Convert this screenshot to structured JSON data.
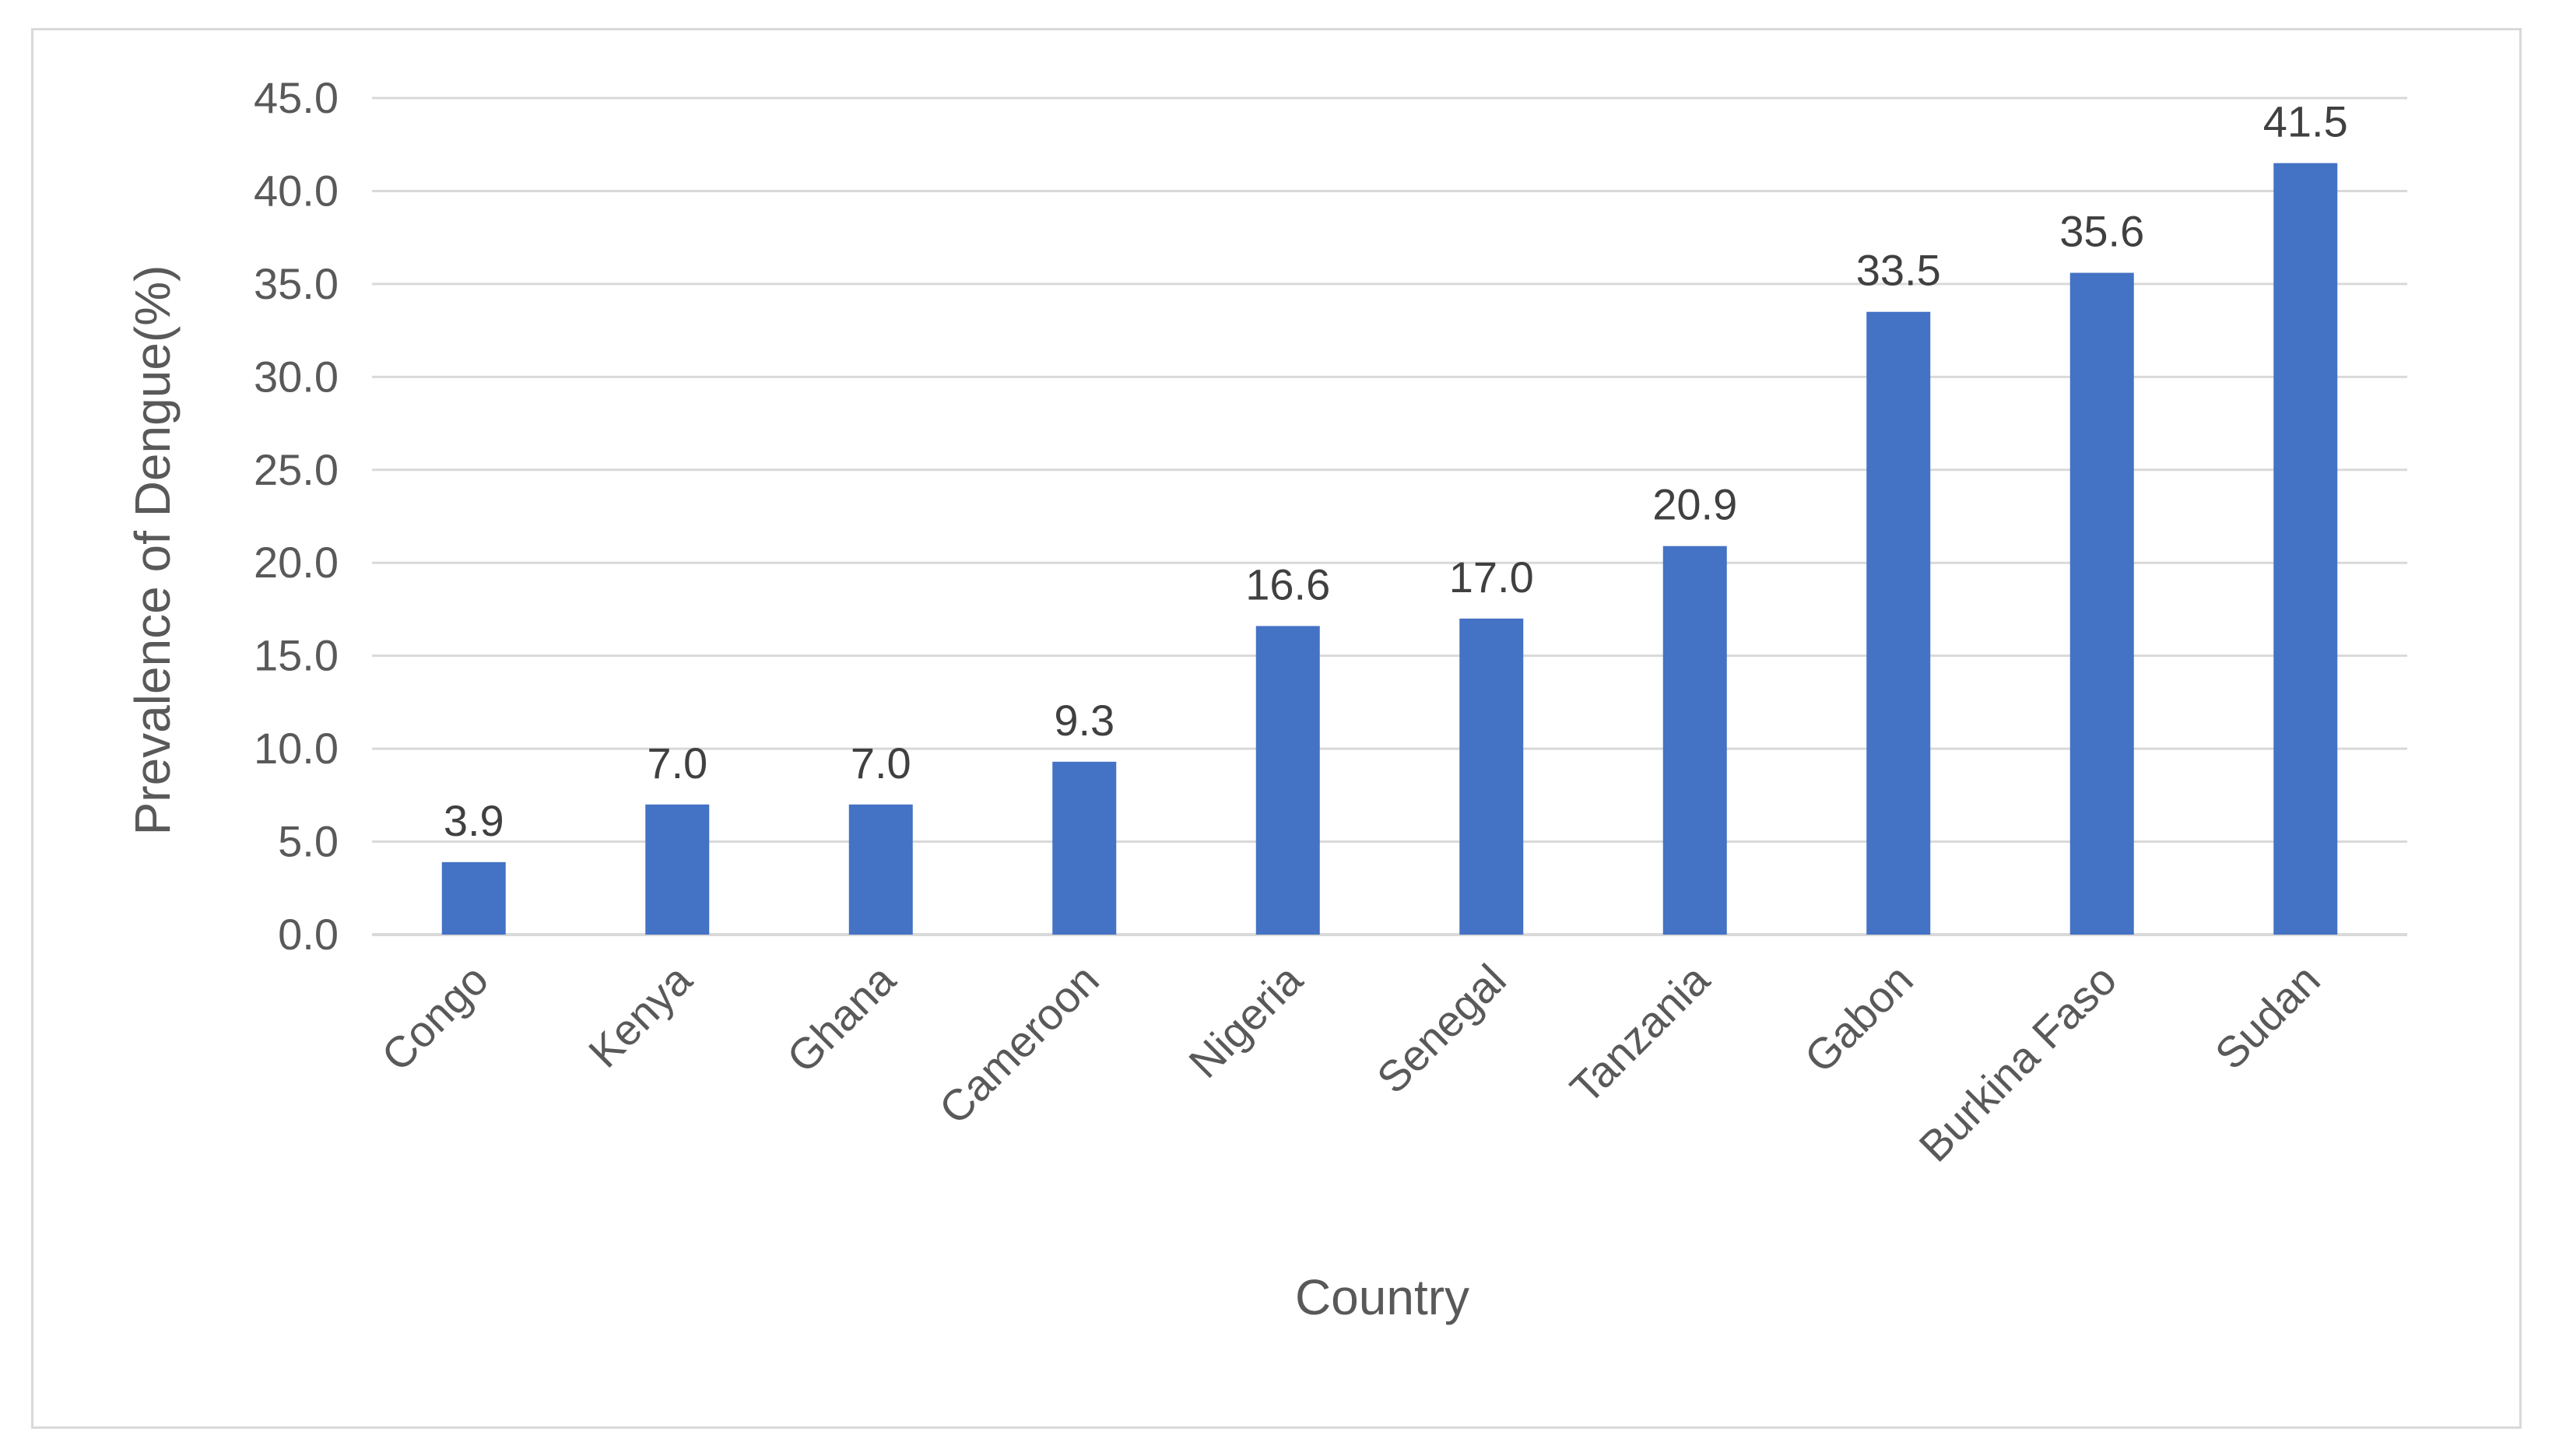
{
  "chart_data": {
    "type": "bar",
    "categories": [
      "Congo",
      "Kenya",
      "Ghana",
      "Cameroon",
      "Nigeria",
      "Senegal",
      "Tanzania",
      "Gabon",
      "Burkina Faso",
      "Sudan"
    ],
    "values": [
      3.9,
      7.0,
      7.0,
      9.3,
      16.6,
      17.0,
      20.9,
      33.5,
      35.6,
      41.5
    ],
    "data_labels": [
      "3.9",
      "7.0",
      "7.0",
      "9.3",
      "16.6",
      "17.0",
      "20.9",
      "33.5",
      "35.6",
      "41.5"
    ],
    "y_ticks": [
      "0.0",
      "5.0",
      "10.0",
      "15.0",
      "20.0",
      "25.0",
      "30.0",
      "35.0",
      "40.0",
      "45.0"
    ],
    "xlabel": "Country",
    "ylabel": "Prevalence of Dengue(%)",
    "ylim": [
      0,
      45
    ],
    "grid": true,
    "bar_color": "#4472c4",
    "grid_color": "#d9d9d9"
  }
}
